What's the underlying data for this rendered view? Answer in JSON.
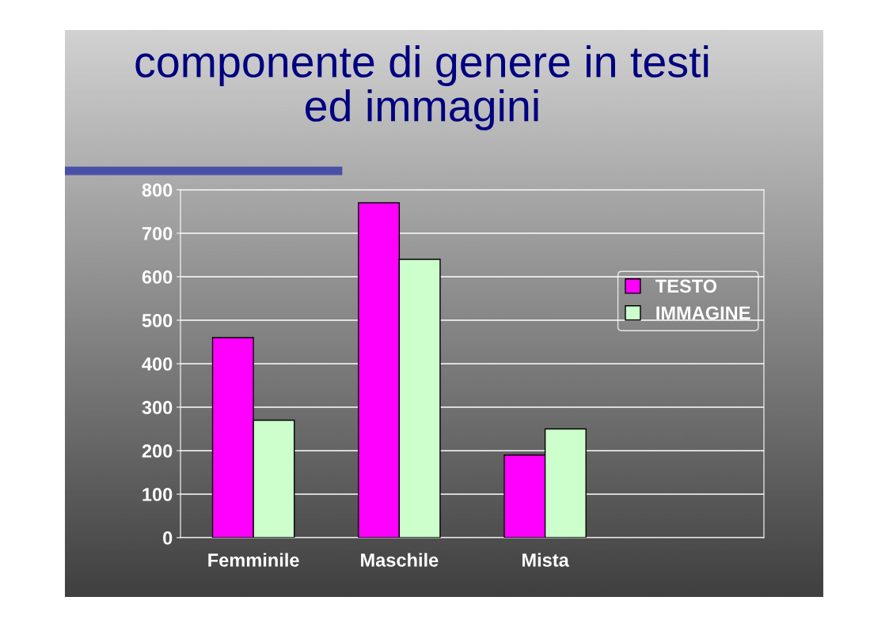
{
  "chart_data": {
    "type": "bar",
    "title": "componente di genere in testi\ned immagini",
    "categories": [
      "Femminile",
      "Maschile",
      "Mista",
      null
    ],
    "series": [
      {
        "name": "TESTO",
        "color": "#ff00ff",
        "values": [
          460,
          770,
          190,
          null
        ]
      },
      {
        "name": "IMMAGINE",
        "color": "#ccffcc",
        "values": [
          270,
          640,
          250,
          null
        ]
      }
    ],
    "ylim": [
      0,
      800
    ],
    "yticks": [
      0,
      100,
      200,
      300,
      400,
      500,
      600,
      700,
      800
    ],
    "grid": "y",
    "legend": "right"
  }
}
